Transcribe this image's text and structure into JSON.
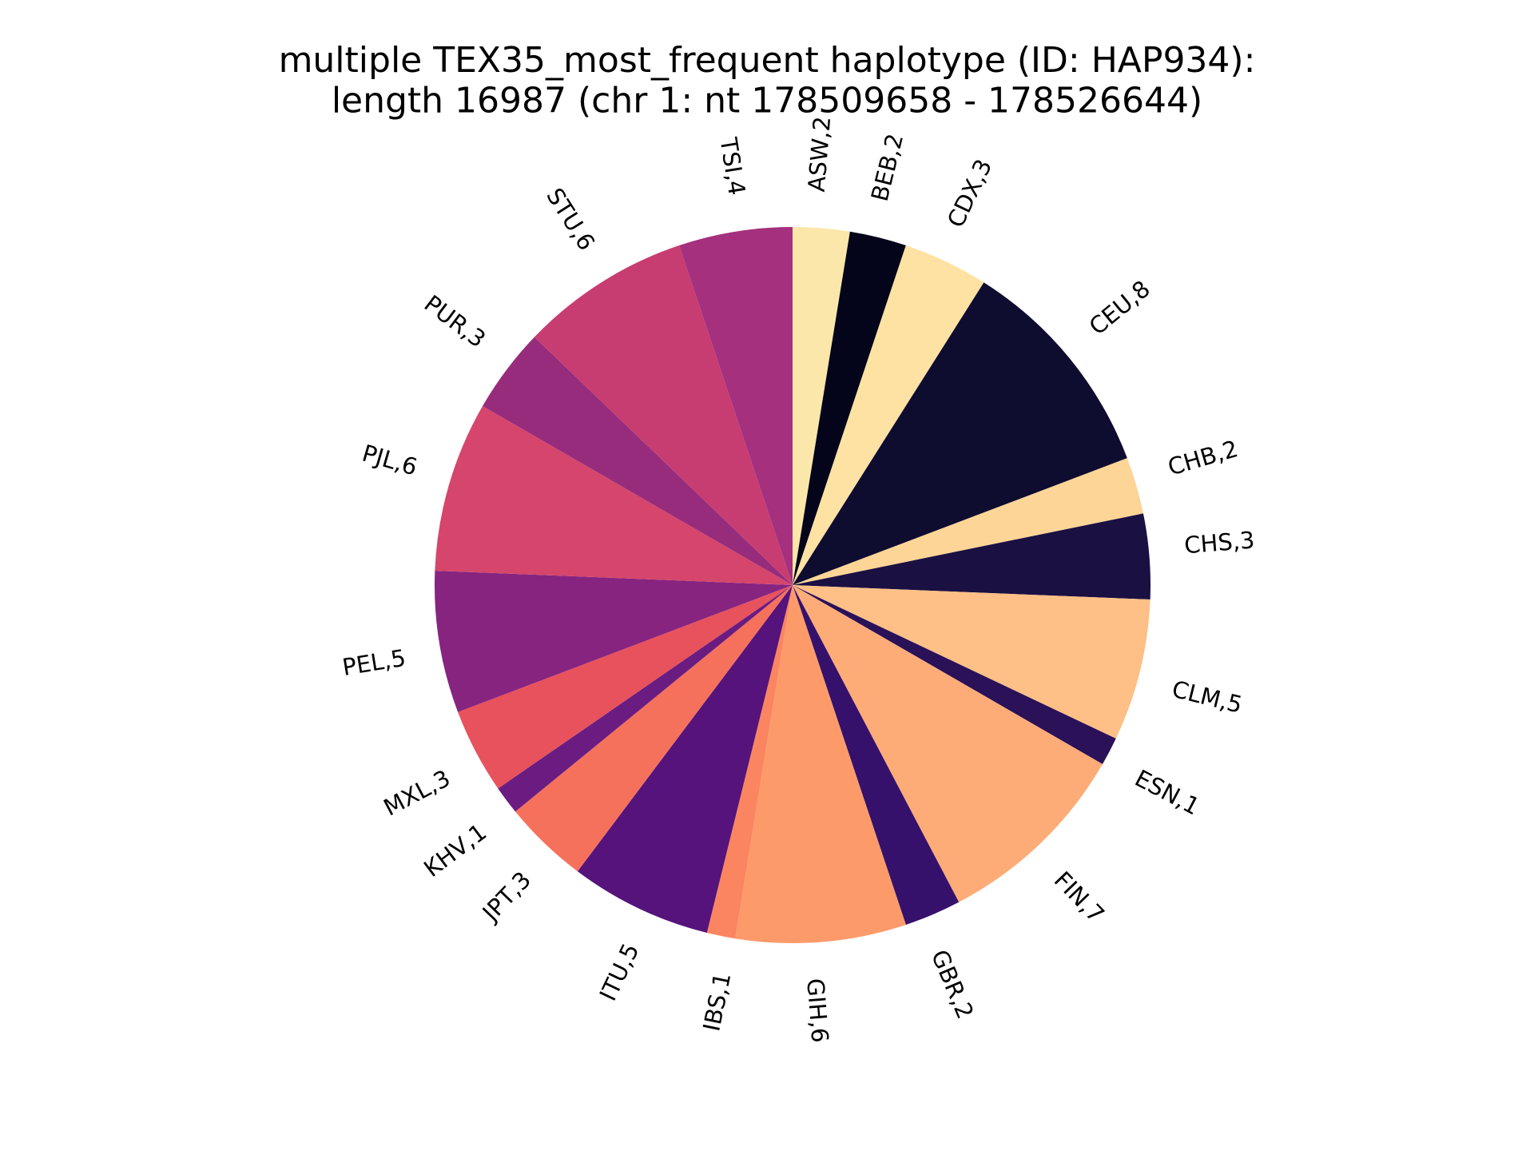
{
  "chart_data": {
    "type": "pie",
    "title": "multiple TEX35_most_frequent haplotype (ID: HAP934):\nlength 16987 (chr 1: nt 178509658 - 178526644)",
    "start_angle_deg": 90,
    "direction": "clockwise",
    "slices": [
      {
        "label": "ASW",
        "value": 2,
        "display": "ASW,2",
        "color": "#fbe7a9"
      },
      {
        "label": "BEB",
        "value": 2,
        "display": "BEB,2",
        "color": "#04041a"
      },
      {
        "label": "CDX",
        "value": 3,
        "display": "CDX,3",
        "color": "#fde2a3"
      },
      {
        "label": "CEU",
        "value": 8,
        "display": "CEU,8",
        "color": "#0e0c2f"
      },
      {
        "label": "CHB",
        "value": 2,
        "display": "CHB,2",
        "color": "#fdd596"
      },
      {
        "label": "CHS",
        "value": 3,
        "display": "CHS,3",
        "color": "#1b1042"
      },
      {
        "label": "CLM",
        "value": 5,
        "display": "CLM,5",
        "color": "#fec086"
      },
      {
        "label": "ESN",
        "value": 1,
        "display": "ESN,1",
        "color": "#2a1158"
      },
      {
        "label": "FIN",
        "value": 7,
        "display": "FIN,7",
        "color": "#fdac78"
      },
      {
        "label": "GBR",
        "value": 2,
        "display": "GBR,2",
        "color": "#35116b"
      },
      {
        "label": "GIH",
        "value": 6,
        "display": "GIH,6",
        "color": "#fd9a6a"
      },
      {
        "label": "IBS",
        "value": 1,
        "display": "IBS,1",
        "color": "#fb8560"
      },
      {
        "label": "ITU",
        "value": 5,
        "display": "ITU,5",
        "color": "#55137b"
      },
      {
        "label": "JPT",
        "value": 3,
        "display": "JPT,3",
        "color": "#f6715c"
      },
      {
        "label": "KHV",
        "value": 1,
        "display": "KHV,1",
        "color": "#6a1c81"
      },
      {
        "label": "MXL",
        "value": 3,
        "display": "MXL,3",
        "color": "#e7525d"
      },
      {
        "label": "PEL",
        "value": 5,
        "display": "PEL,5",
        "color": "#862480"
      },
      {
        "label": "PJL",
        "value": 6,
        "display": "PJL,6",
        "color": "#d6456b"
      },
      {
        "label": "PUR",
        "value": 3,
        "display": "PUR,3",
        "color": "#982c7c"
      },
      {
        "label": "STU",
        "value": 6,
        "display": "STU,6",
        "color": "#c73d72"
      },
      {
        "label": "TSI",
        "value": 4,
        "display": "TSI,4",
        "color": "#a5307d"
      }
    ]
  }
}
